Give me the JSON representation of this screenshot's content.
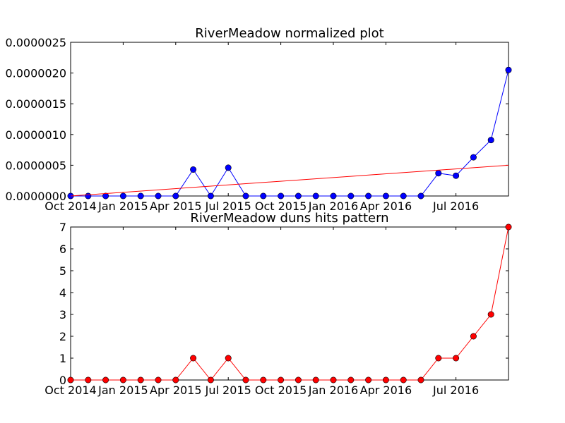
{
  "chart_data": [
    {
      "type": "line",
      "title": "RiverMeadow normalized plot",
      "xlabel": "",
      "ylabel": "",
      "x_tick_labels": [
        "Oct 2014",
        "Jan 2015",
        "Apr 2015",
        "Jul 2015",
        "Oct 2015",
        "Jan 2016",
        "Apr 2016",
        "Jul 2016"
      ],
      "y_tick_labels": [
        "0.0000000",
        "0.0000005",
        "0.0000010",
        "0.0000015",
        "0.0000020",
        "0.0000025"
      ],
      "y_ticks": [
        0,
        5e-07,
        1e-06,
        1.5e-06,
        2e-06,
        2.5e-06
      ],
      "ylim": [
        0,
        2.5e-06
      ],
      "grid": false,
      "series": [
        {
          "color": "#0000ff",
          "marker": "circle",
          "values": [
            0,
            0,
            0,
            0,
            0,
            0,
            0,
            4.3e-07,
            0,
            4.6e-07,
            0,
            0,
            0,
            0,
            0,
            0,
            0,
            0,
            0,
            0,
            0,
            3.7e-07,
            3.3e-07,
            6.3e-07,
            9.1e-07,
            2.05e-06
          ]
        },
        {
          "color": "#ff0000",
          "marker": "none",
          "values_endpoints": [
            0,
            5e-07
          ]
        }
      ]
    },
    {
      "type": "line",
      "title": "RiverMeadow duns hits pattern",
      "xlabel": "",
      "ylabel": "",
      "x_tick_labels": [
        "Oct 2014",
        "Jan 2015",
        "Apr 2015",
        "Jul 2015",
        "Oct 2015",
        "Jan 2016",
        "Apr 2016",
        "Jul 2016"
      ],
      "y_tick_labels": [
        "0",
        "1",
        "2",
        "3",
        "4",
        "5",
        "6",
        "7"
      ],
      "y_ticks": [
        0,
        1,
        2,
        3,
        4,
        5,
        6,
        7
      ],
      "ylim": [
        0,
        7
      ],
      "grid": false,
      "series": [
        {
          "color": "#ff0000",
          "marker": "circle",
          "values": [
            0,
            0,
            0,
            0,
            0,
            0,
            0,
            1,
            0,
            1,
            0,
            0,
            0,
            0,
            0,
            0,
            0,
            0,
            0,
            0,
            0,
            1,
            1,
            2,
            3,
            7
          ]
        }
      ]
    }
  ]
}
